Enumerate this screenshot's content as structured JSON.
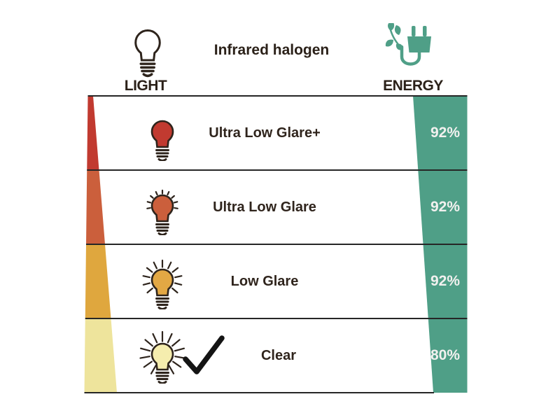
{
  "title": {
    "product_name": "Infrared halogen"
  },
  "columns": {
    "light": "LIGHT",
    "energy": "ENERGY"
  },
  "rows": [
    {
      "label": "Ultra Low Glare+",
      "energy": "92%",
      "bulb_color": "#c13a30",
      "strip_color": "#c13a30",
      "selected": false
    },
    {
      "label": "Ultra Low Glare",
      "energy": "92%",
      "bulb_color": "#cb5f3c",
      "strip_color": "#cb5f3c",
      "selected": false
    },
    {
      "label": "Low Glare",
      "energy": "92%",
      "bulb_color": "#e3a844",
      "strip_color": "#dfa73e",
      "selected": false
    },
    {
      "label": "Clear",
      "energy": "80%",
      "bulb_color": "#f5edae",
      "strip_color": "#eee49c",
      "selected": true
    }
  ],
  "colors": {
    "energy_band": "#4f9f87",
    "icon_green": "#4f9f87",
    "outline": "#2e241c",
    "grid_line": "#262626",
    "text": "#2b2119",
    "percent_text": "#f2f1ef",
    "background": "#ffffff"
  }
}
